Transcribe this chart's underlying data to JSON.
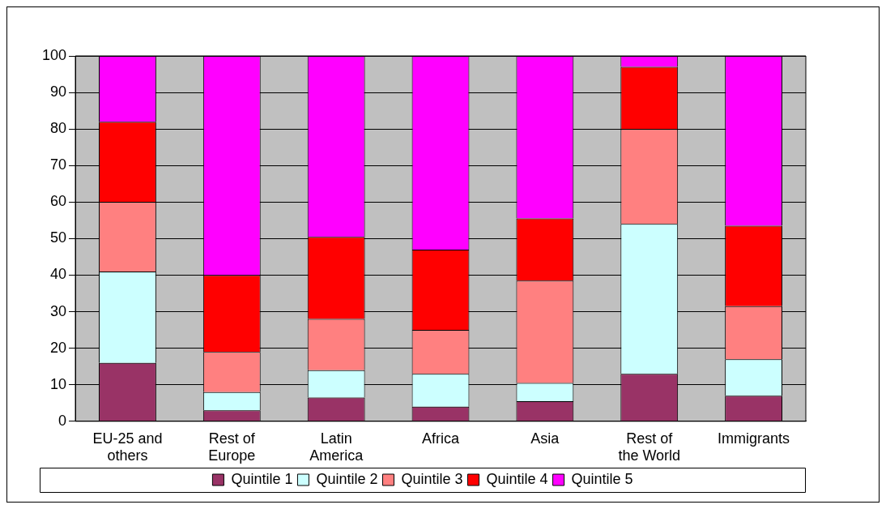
{
  "chart_data": {
    "type": "bar",
    "stacked": true,
    "categories": [
      "EU-25 and others",
      "Rest of Europe",
      "Latin America",
      "Africa",
      "Asia",
      "Rest of the World",
      "Immigrants"
    ],
    "series": [
      {
        "name": "Quintile 1",
        "color": "#993366",
        "values": [
          16,
          3,
          6.5,
          4,
          5.5,
          13,
          7
        ]
      },
      {
        "name": "Quintile 2",
        "color": "#ccffff",
        "values": [
          25,
          5,
          7.5,
          9,
          5,
          41,
          10
        ]
      },
      {
        "name": "Quintile 3",
        "color": "#ff8080",
        "values": [
          19,
          11,
          14,
          12,
          28,
          26,
          14.5
        ]
      },
      {
        "name": "Quintile 4",
        "color": "#ff0000",
        "values": [
          22,
          21,
          22.5,
          22,
          17,
          17,
          22
        ]
      },
      {
        "name": "Quintile 5",
        "color": "#ff00ff",
        "values": [
          18,
          60,
          49.5,
          53,
          44.5,
          3,
          46.5
        ]
      }
    ],
    "ylim": [
      0,
      100
    ],
    "yticks": [
      0,
      10,
      20,
      30,
      40,
      50,
      60,
      70,
      80,
      90,
      100
    ],
    "grid": "y",
    "legend": "bottom"
  }
}
